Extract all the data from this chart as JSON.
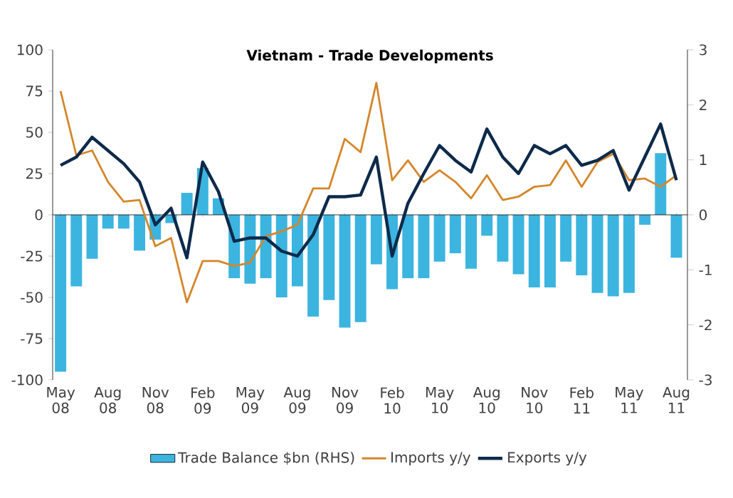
{
  "chart_data": {
    "type": "line",
    "title": "Vietnam - Trade Developments",
    "categories": [
      "May 08",
      null,
      null,
      "Aug 08",
      null,
      null,
      "Nov 08",
      null,
      null,
      "Feb 09",
      null,
      null,
      "May 09",
      null,
      null,
      "Aug 09",
      null,
      null,
      "Nov 09",
      null,
      null,
      "Feb 10",
      null,
      null,
      "May 10",
      null,
      null,
      "Aug 10",
      null,
      null,
      "Nov 10",
      null,
      null,
      "Feb 11",
      null,
      null,
      "May 11",
      null,
      null,
      "Aug 11"
    ],
    "series": [
      {
        "name": "Trade Balance $bn (RHS)",
        "type": "bar",
        "axis": "y2",
        "color": "#3cb4e0",
        "values": [
          -2.85,
          -1.3,
          -0.8,
          -0.25,
          -0.25,
          -0.65,
          -0.45,
          -0.15,
          0.4,
          0.85,
          0.3,
          -1.15,
          -1.25,
          -1.15,
          -1.5,
          -1.3,
          -1.85,
          -1.55,
          -2.05,
          -1.95,
          -0.9,
          -1.35,
          -1.15,
          -1.15,
          -0.85,
          -0.7,
          -0.98,
          -0.38,
          -0.85,
          -1.08,
          -1.32,
          -1.32,
          -0.85,
          -1.1,
          -1.42,
          -1.48,
          -1.42,
          -0.18,
          1.12,
          -0.78
        ]
      },
      {
        "name": "Imports y/y",
        "color": "#d4862a",
        "values": [
          75,
          36,
          39,
          20,
          8,
          9,
          -19,
          -14,
          -53,
          -28,
          -28,
          -31,
          -29,
          -13,
          -10,
          -6,
          16,
          16,
          46,
          38,
          80,
          21,
          33,
          20,
          27,
          20,
          10,
          24,
          9,
          11,
          17,
          18,
          33,
          17,
          32,
          37,
          21,
          22,
          17,
          24
        ]
      },
      {
        "name": "Exports y/y",
        "color": "#0d2a4a",
        "values": [
          30,
          35,
          47,
          39,
          31,
          20,
          -6,
          4,
          -26,
          32,
          14,
          -16,
          -14,
          -14,
          -22,
          -25,
          -12,
          11,
          11,
          12,
          35,
          -25,
          7,
          25,
          42,
          33,
          26,
          52,
          35,
          25,
          42,
          37,
          42,
          30,
          33,
          39,
          15,
          35,
          55,
          21
        ]
      }
    ],
    "ylim": [
      -100,
      100
    ],
    "yticks": [
      -100,
      -75,
      -50,
      -25,
      0,
      25,
      50,
      75,
      100
    ],
    "y2lim": [
      -3,
      3
    ],
    "y2ticks": [
      -3,
      -2,
      -1,
      0,
      1,
      2,
      3
    ],
    "legend": "bottom",
    "marker": "none",
    "line_style": "solid"
  }
}
